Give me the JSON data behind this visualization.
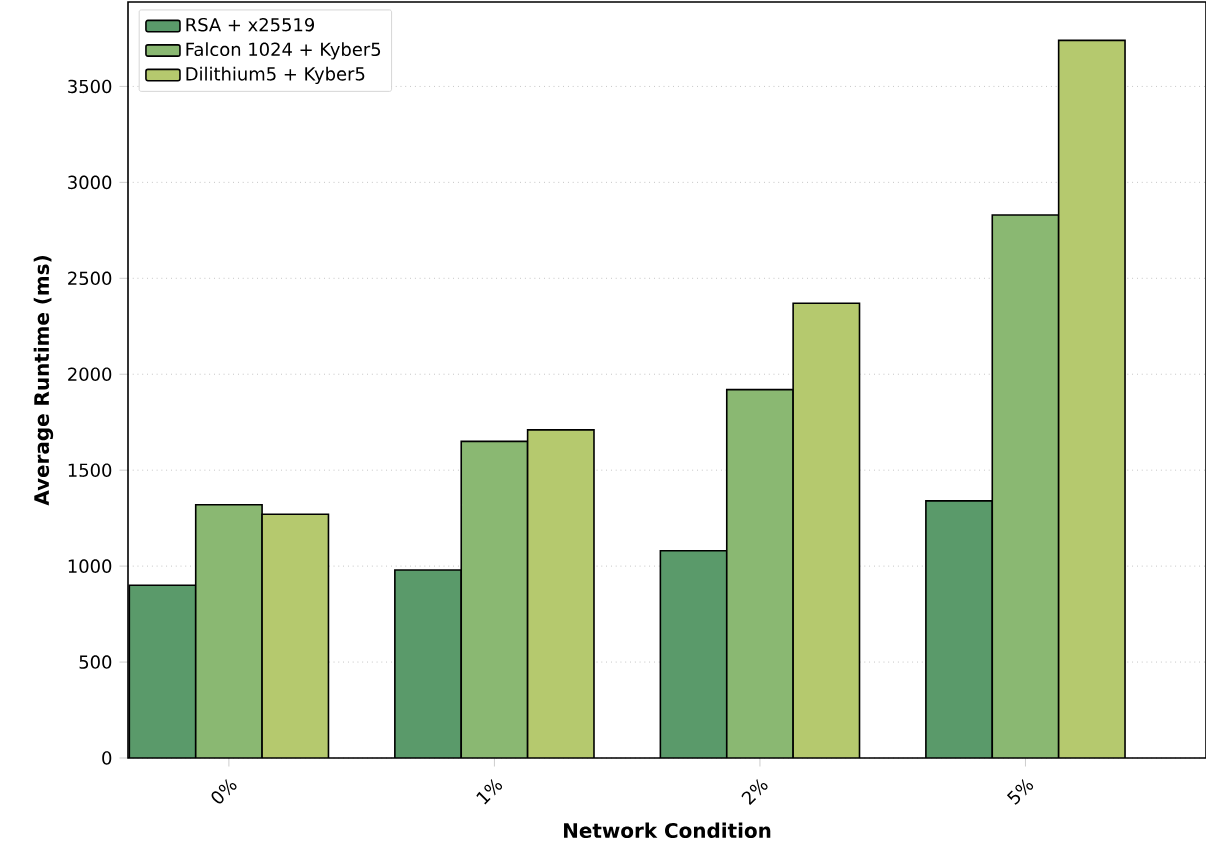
{
  "chart_data": {
    "type": "bar",
    "xlabel": "Network Condition",
    "ylabel": "Average Runtime (ms)",
    "categories": [
      "0%",
      "1%",
      "2%",
      "5%"
    ],
    "series": [
      {
        "name": "RSA + x25519",
        "color": "#5a9a6a",
        "values": [
          900,
          980,
          1080,
          1340
        ]
      },
      {
        "name": "Falcon 1024 + Kyber5",
        "color": "#8ab872",
        "values": [
          1320,
          1650,
          1920,
          2830
        ]
      },
      {
        "name": "Dilithium5 + Kyber5",
        "color": "#b5c96e",
        "values": [
          1270,
          1710,
          2370,
          3740
        ]
      }
    ],
    "ylim": [
      0,
      3940
    ],
    "yticks": [
      0,
      500,
      1000,
      1500,
      2000,
      2500,
      3000,
      3500
    ],
    "grid": "y",
    "legend": "top left"
  }
}
